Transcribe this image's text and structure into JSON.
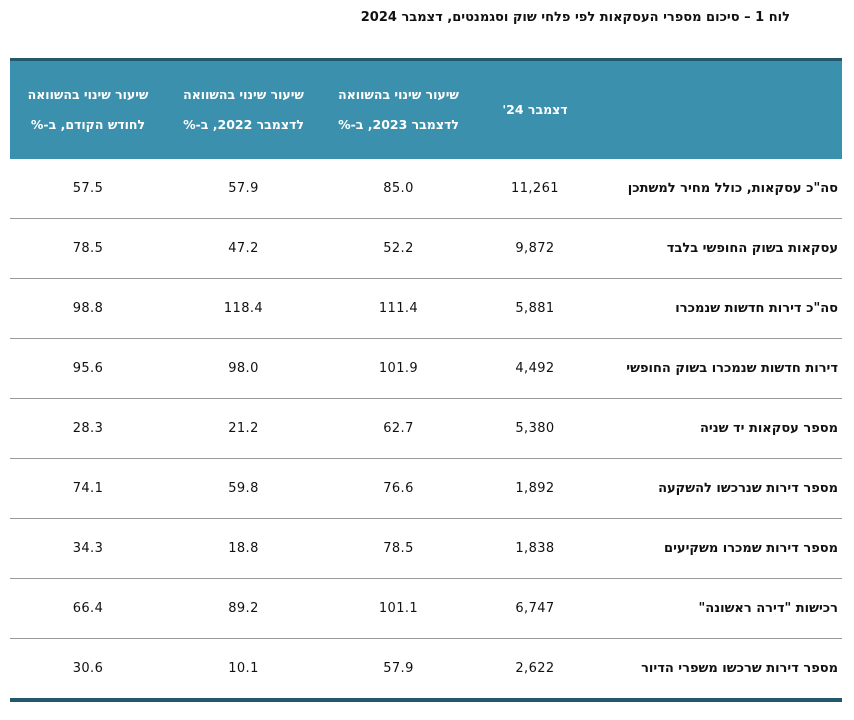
{
  "title": "לוח 1 – סיכום מספרי העסקאות לפי פלחי שוק וסגמנטים, דצמבר 2024",
  "header": {
    "label": "",
    "dec24": "דצמבר 24'",
    "vs2023_line1": "שיעור שינוי בהשוואה",
    "vs2023_line2": "לדצמבר 2023, ב-%",
    "vs2022_line1": "שיעור שינוי בהשוואה",
    "vs2022_line2": "לדצמבר 2022, ב-%",
    "vsprev_line1": "שיעור שינוי בהשוואה",
    "vsprev_line2": "לחודש הקודם, ב-%"
  },
  "rows": [
    {
      "label": "סה\"כ עסקאות, כולל מחיר למשתכן",
      "dec24": "11,261",
      "vs2023": "85.0",
      "vs2022": "57.9",
      "vsprev": "57.5"
    },
    {
      "label": "עסקאות בשוק החופשי בלבד",
      "dec24": "9,872",
      "vs2023": "52.2",
      "vs2022": "47.2",
      "vsprev": "78.5"
    },
    {
      "label": "סה\"כ דירות חדשות שנמכרו",
      "dec24": "5,881",
      "vs2023": "111.4",
      "vs2022": "118.4",
      "vsprev": "98.8"
    },
    {
      "label": "דירות חדשות שנמכרו בשוק החופשי",
      "dec24": "4,492",
      "vs2023": "101.9",
      "vs2022": "98.0",
      "vsprev": "95.6"
    },
    {
      "label": "מספר עסקאות יד שניה",
      "dec24": "5,380",
      "vs2023": "62.7",
      "vs2022": "21.2",
      "vsprev": "28.3"
    },
    {
      "label": "מספר דירות שנרכשו להשקעה",
      "dec24": "1,892",
      "vs2023": "76.6",
      "vs2022": "59.8",
      "vsprev": "74.1"
    },
    {
      "label": "מספר דירות שמכרו משקיעים",
      "dec24": "1,838",
      "vs2023": "78.5",
      "vs2022": "18.8",
      "vsprev": "34.3"
    },
    {
      "label": "רכישות \"דירה ראשונה\"",
      "dec24": "6,747",
      "vs2023": "101.1",
      "vs2022": "89.2",
      "vsprev": "66.4"
    },
    {
      "label": "מספר דירות שרכשו משפרי הדיור",
      "dec24": "2,622",
      "vs2023": "57.9",
      "vs2022": "10.1",
      "vsprev": "30.6"
    }
  ]
}
